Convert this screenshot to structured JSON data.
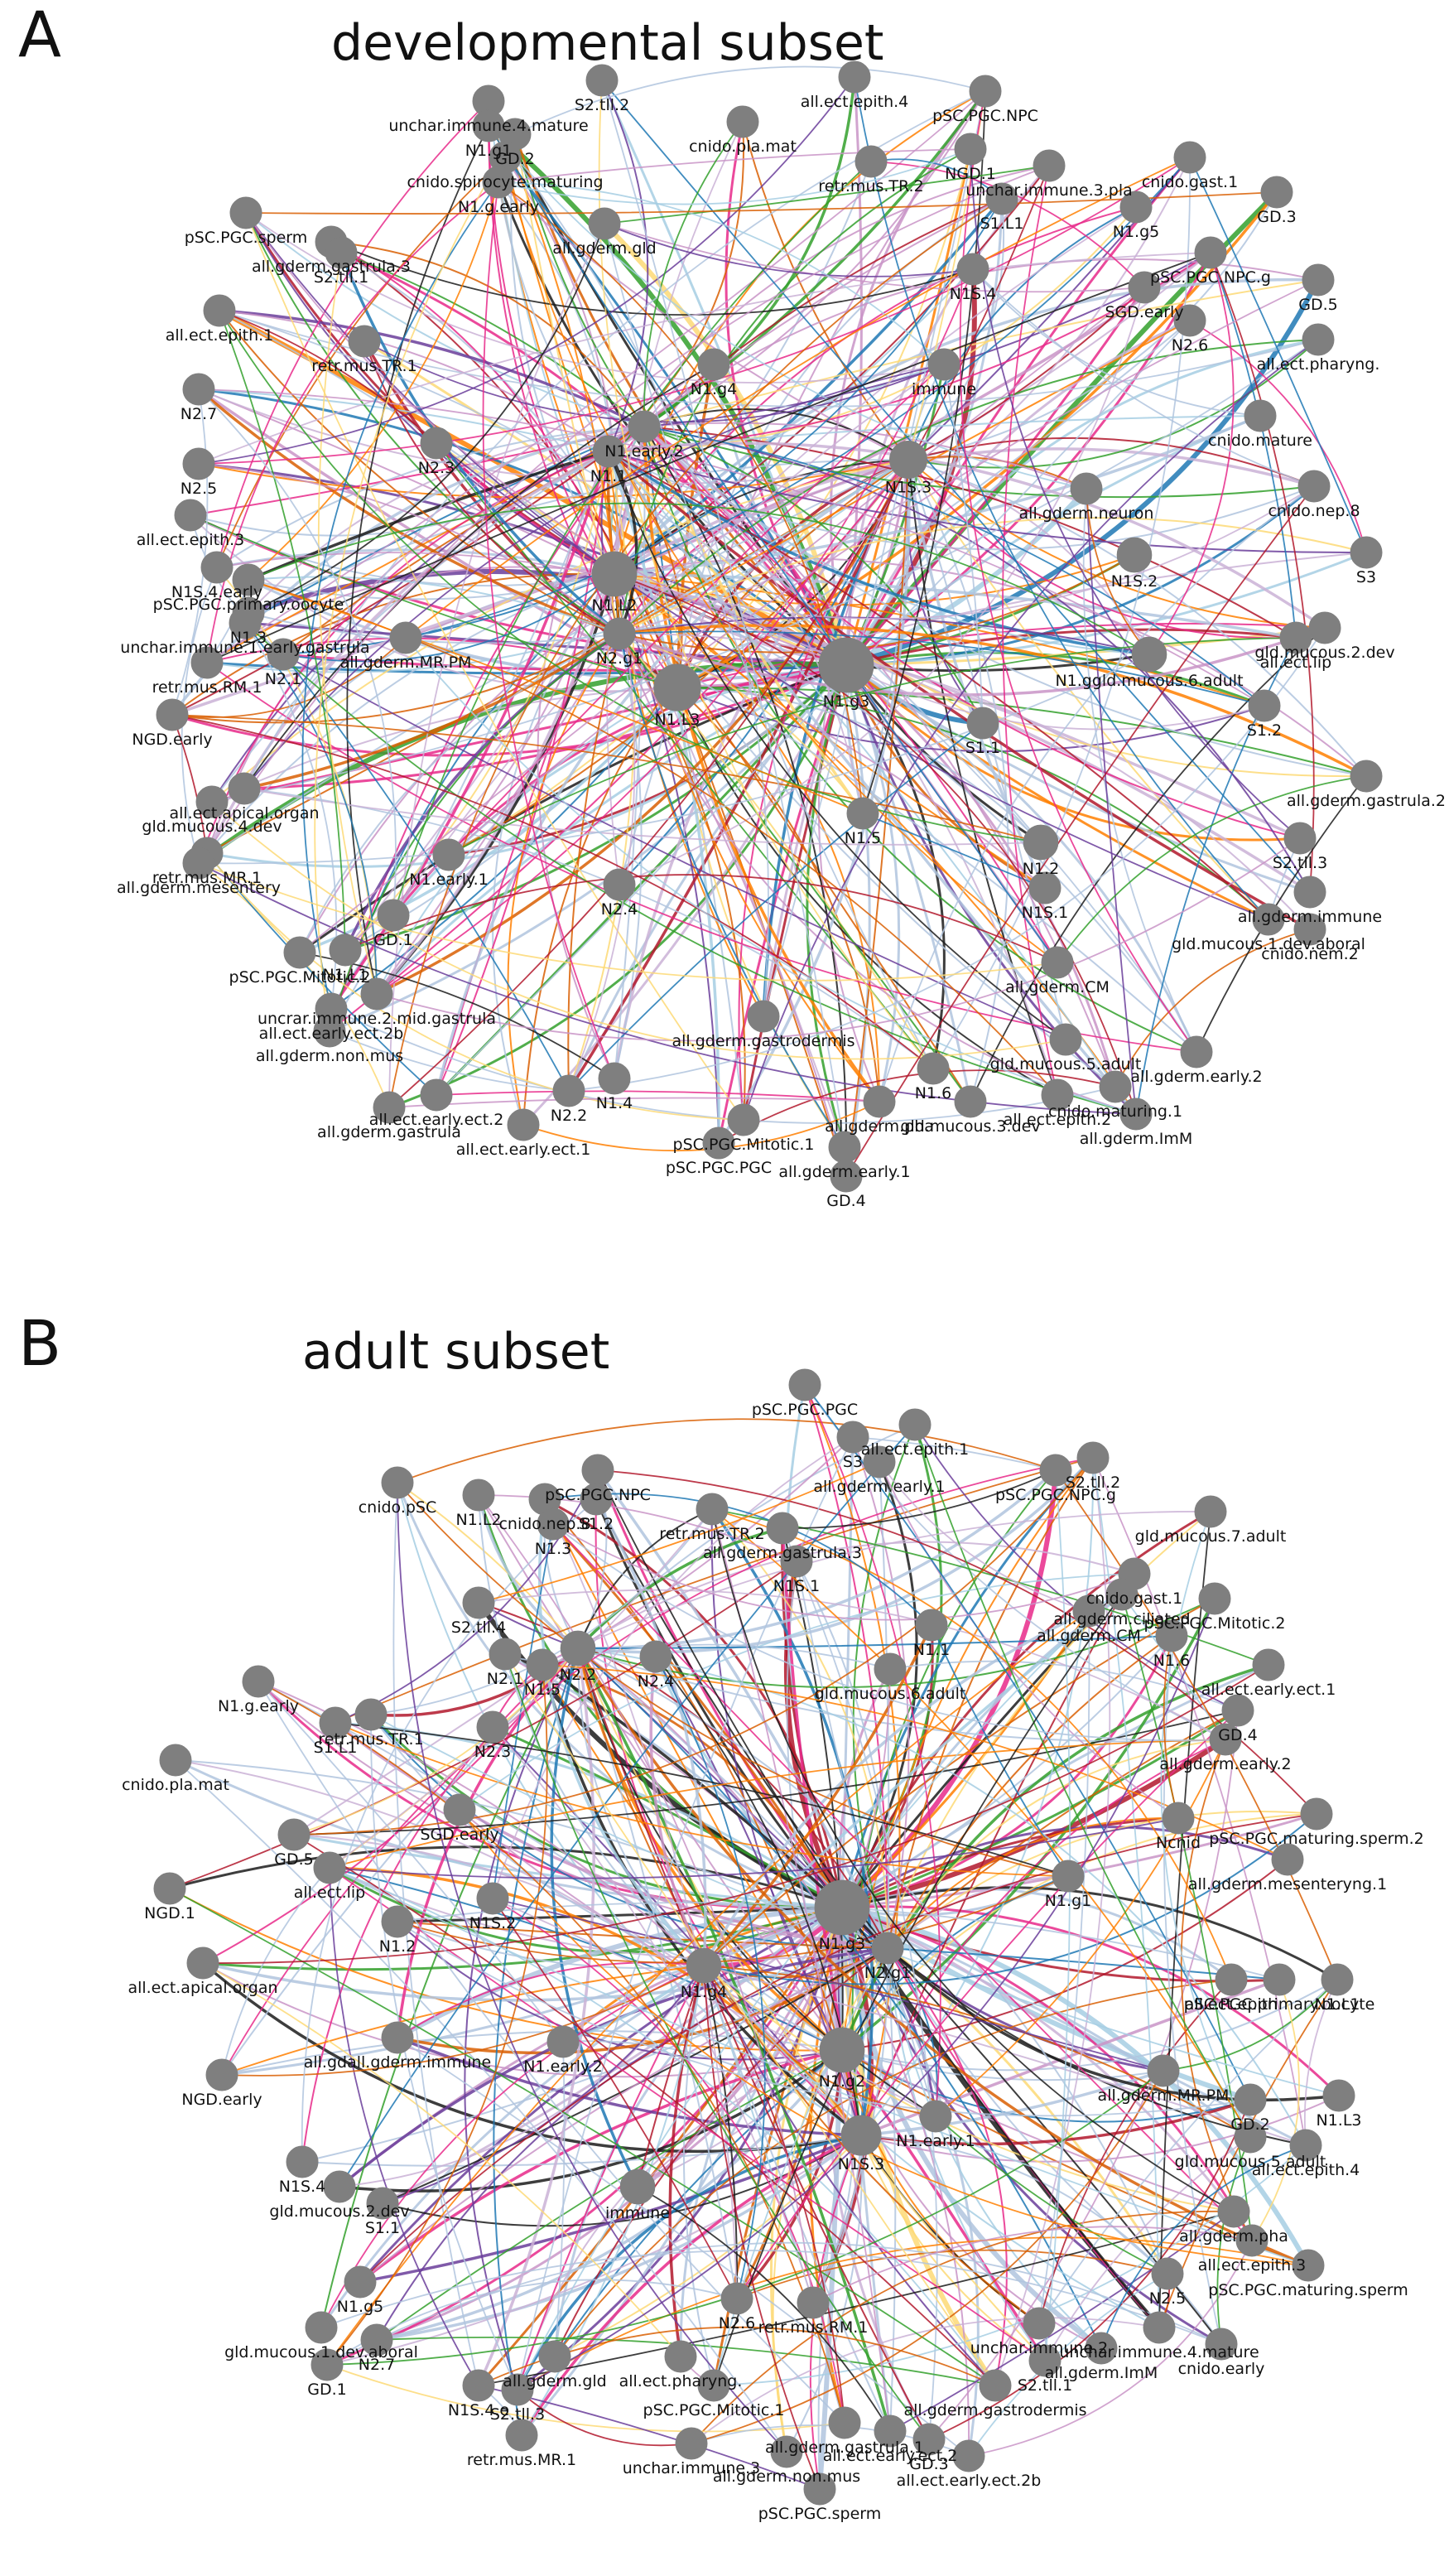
{
  "panels": [
    {
      "letter": "A",
      "title": "developmental subset",
      "hubs": [
        "N1.g3",
        "N1.L3",
        "N1.L2",
        "N1S.3",
        "N1.early.2",
        "N1.1",
        "N2.g1"
      ],
      "nodes": [
        {
          "id": "N1.g3",
          "size": 3
        },
        {
          "id": "N1.L3",
          "size": 2.2
        },
        {
          "id": "N1.L2",
          "size": 2
        },
        {
          "id": "N1S.3",
          "size": 1.4
        },
        {
          "id": "N2.g1",
          "size": 1
        },
        {
          "id": "N1.1",
          "size": 1
        },
        {
          "id": "N1.early.2",
          "size": 1
        },
        {
          "id": "N1S.2",
          "size": 1.2
        },
        {
          "id": "N1.ggld.mucous.6.adult",
          "size": 1.2
        },
        {
          "id": "N1S.4",
          "size": 1
        },
        {
          "id": "N1.g4",
          "size": 1
        },
        {
          "id": "N2.3",
          "size": 1
        },
        {
          "id": "immune",
          "size": 1
        },
        {
          "id": "all.gderm.neuron",
          "size": 1
        },
        {
          "id": "S1.1",
          "size": 1
        },
        {
          "id": "N1.5",
          "size": 1
        },
        {
          "id": "N1.2",
          "size": 1.2
        },
        {
          "id": "N2.4",
          "size": 1
        },
        {
          "id": "N1.early.1",
          "size": 1
        },
        {
          "id": "all.gderm.MR.PM",
          "size": 1
        },
        {
          "id": "all.gderm.gastrodermis",
          "size": 1
        },
        {
          "id": "N1.4",
          "size": 1
        },
        {
          "id": "N1.6",
          "size": 1
        },
        {
          "id": "N2.2",
          "size": 1
        },
        {
          "id": "N1S.1",
          "size": 1
        },
        {
          "id": "all.gderm.CM",
          "size": 1
        },
        {
          "id": "S1.2",
          "size": 1
        },
        {
          "id": "unchar.immune.4.mature",
          "size": 1
        },
        {
          "id": "N1.g1",
          "size": 1
        },
        {
          "id": "S2.tll.2",
          "size": 1
        },
        {
          "id": "GD.2",
          "size": 1
        },
        {
          "id": "cnido.spirocyte.maturing",
          "size": 1
        },
        {
          "id": "N1.g.early",
          "size": 1
        },
        {
          "id": "cnido.pla.mat",
          "size": 1
        },
        {
          "id": "all.ect.epith.4",
          "size": 1
        },
        {
          "id": "pSC.PGC.NPC",
          "size": 1
        },
        {
          "id": "NGD.1",
          "size": 1
        },
        {
          "id": "retr.mus.TR.2",
          "size": 1
        },
        {
          "id": "S1.L1",
          "size": 1
        },
        {
          "id": "unchar.immune.3.pla",
          "size": 1
        },
        {
          "id": "cnido.gast.1",
          "size": 1
        },
        {
          "id": "N1.g5",
          "size": 1
        },
        {
          "id": "GD.3",
          "size": 1
        },
        {
          "id": "pSC.PGC.sperm",
          "size": 1
        },
        {
          "id": "all.gderm.gastrula.3",
          "size": 1
        },
        {
          "id": "S2.tll.1",
          "size": 1
        },
        {
          "id": "all.gderm.gld",
          "size": 1
        },
        {
          "id": "pSC.PGC.NPC.g",
          "size": 1
        },
        {
          "id": "GD.5",
          "size": 1
        },
        {
          "id": "SGD.early",
          "size": 1
        },
        {
          "id": "N2.6",
          "size": 1
        },
        {
          "id": "all.ect.pharyng.",
          "size": 1
        },
        {
          "id": "all.ect.epith.1",
          "size": 1
        },
        {
          "id": "retr.mus.TR.1",
          "size": 1
        },
        {
          "id": "N2.7",
          "size": 1
        },
        {
          "id": "cnido.mature",
          "size": 1
        },
        {
          "id": "N2.5",
          "size": 1
        },
        {
          "id": "cnido.nep.8",
          "size": 1
        },
        {
          "id": "S3",
          "size": 1
        },
        {
          "id": "all.ect.epith.3",
          "size": 1
        },
        {
          "id": "N1S.4.early",
          "size": 1
        },
        {
          "id": "pSC.PGC.primary.oocyte",
          "size": 1
        },
        {
          "id": "N1.3",
          "size": 1
        },
        {
          "id": "unchar.immune.1.early.gastrula",
          "size": 1
        },
        {
          "id": "gld.mucous.2.dev",
          "size": 1
        },
        {
          "id": "all.ect.lip",
          "size": 1
        },
        {
          "id": "N2.1",
          "size": 1
        },
        {
          "id": "retr.mus.RM.1",
          "size": 1
        },
        {
          "id": "NGD.early",
          "size": 1
        },
        {
          "id": "all.ect.apical.organ",
          "size": 1
        },
        {
          "id": "gld.mucous.4.dev",
          "size": 1
        },
        {
          "id": "retr.mus.MR.1",
          "size": 1
        },
        {
          "id": "all.gderm.mesentery",
          "size": 1
        },
        {
          "id": "all.gderm.gastrula.2",
          "size": 1
        },
        {
          "id": "S2.tll.3",
          "size": 1
        },
        {
          "id": "all.gderm.immune",
          "size": 1
        },
        {
          "id": "gld.mucous.1.dev.aboral",
          "size": 1
        },
        {
          "id": "cnido.nem.2",
          "size": 1
        },
        {
          "id": "GD.1",
          "size": 1
        },
        {
          "id": "N1.L1",
          "size": 1
        },
        {
          "id": "pSC.PGC.Mitotic.2",
          "size": 1
        },
        {
          "id": "uncrar.immune.2.mid.gastrula",
          "size": 1
        },
        {
          "id": "all.ect.early.ect.2b",
          "size": 1
        },
        {
          "id": "all.gderm.non.mus",
          "size": 1
        },
        {
          "id": "gld.mucous.5.adult",
          "size": 1
        },
        {
          "id": "all.ect.early.ect.2",
          "size": 1
        },
        {
          "id": "all.gderm.gastrula",
          "size": 1
        },
        {
          "id": "all.ect.early.ect.1",
          "size": 1
        },
        {
          "id": "pSC.PGC.Mitotic.1",
          "size": 1
        },
        {
          "id": "pSC.PGC.PGC",
          "size": 1
        },
        {
          "id": "all.gderm.pha",
          "size": 1
        },
        {
          "id": "gld.mucous.3.dev",
          "size": 1
        },
        {
          "id": "all.gderm.early.1",
          "size": 1
        },
        {
          "id": "GD.4",
          "size": 1
        },
        {
          "id": "all.ect.epith.2",
          "size": 1
        },
        {
          "id": "cnido.maturing.1",
          "size": 1
        },
        {
          "id": "all.gderm.early.2",
          "size": 1
        },
        {
          "id": "all.gderm.ImM",
          "size": 1
        }
      ]
    },
    {
      "letter": "B",
      "title": "adult subset",
      "hubs": [
        "N1.g3",
        "N1.g2",
        "N1S.3",
        "N2.g1",
        "N2.2",
        "N1.g4"
      ],
      "nodes": [
        {
          "id": "N1.g3",
          "size": 3
        },
        {
          "id": "N1.g2",
          "size": 2
        },
        {
          "id": "N1S.3",
          "size": 1.6
        },
        {
          "id": "N2.g1",
          "size": 1
        },
        {
          "id": "N2.2",
          "size": 1.2
        },
        {
          "id": "N1.g4",
          "size": 1.2
        },
        {
          "id": "immune",
          "size": 1.2
        },
        {
          "id": "N1.early.2",
          "size": 1
        },
        {
          "id": "N1S.2",
          "size": 1
        },
        {
          "id": "N1.1",
          "size": 1
        },
        {
          "id": "N1S.1",
          "size": 1
        },
        {
          "id": "pSC.PGC.PGC",
          "size": 1
        },
        {
          "id": "all.ect.epith.1",
          "size": 1
        },
        {
          "id": "S3",
          "size": 1
        },
        {
          "id": "all.gderm.early.1",
          "size": 1
        },
        {
          "id": "S2.tll.2",
          "size": 1
        },
        {
          "id": "pSC.PGC.NPC.g",
          "size": 1
        },
        {
          "id": "pSC.PGC.NPC",
          "size": 1
        },
        {
          "id": "S1.2",
          "size": 1
        },
        {
          "id": "cnido.pSC",
          "size": 1
        },
        {
          "id": "N1.L2",
          "size": 1
        },
        {
          "id": "cnido.nep.8",
          "size": 1
        },
        {
          "id": "N1.3",
          "size": 1
        },
        {
          "id": "retr.mus.TR.2",
          "size": 1
        },
        {
          "id": "all.gderm.gastrula.3",
          "size": 1
        },
        {
          "id": "gld.mucous.7.adult",
          "size": 1
        },
        {
          "id": "cnido.gast.1",
          "size": 1
        },
        {
          "id": "all.gderm.ciliated",
          "size": 1
        },
        {
          "id": "all.gderm.CM",
          "size": 1
        },
        {
          "id": "pSC.PGC.Mitotic.2",
          "size": 1
        },
        {
          "id": "N1.6",
          "size": 1
        },
        {
          "id": "S2.tll.4",
          "size": 1
        },
        {
          "id": "N2.1",
          "size": 1
        },
        {
          "id": "N1.5",
          "size": 1
        },
        {
          "id": "N2.4",
          "size": 1
        },
        {
          "id": "gld.mucous.6.adult",
          "size": 1
        },
        {
          "id": "all.ect.early.ect.1",
          "size": 1
        },
        {
          "id": "GD.4",
          "size": 1
        },
        {
          "id": "all.gderm.early.2",
          "size": 1
        },
        {
          "id": "N1.g.early",
          "size": 1
        },
        {
          "id": "retr.mus.TR.1",
          "size": 1
        },
        {
          "id": "S1.L1",
          "size": 1
        },
        {
          "id": "N2.3",
          "size": 1
        },
        {
          "id": "cnido.pla.mat",
          "size": 1
        },
        {
          "id": "SGD.early",
          "size": 1
        },
        {
          "id": "Ncnid",
          "size": 1
        },
        {
          "id": "pSC.PGC.maturing.sperm.2",
          "size": 1
        },
        {
          "id": "all.gderm.mesenteryng.1",
          "size": 1
        },
        {
          "id": "GD.5",
          "size": 1
        },
        {
          "id": "all.ect.lip",
          "size": 1
        },
        {
          "id": "N1.g1",
          "size": 1
        },
        {
          "id": "NGD.1",
          "size": 1
        },
        {
          "id": "N1.2",
          "size": 1
        },
        {
          "id": "all.ect.apical.organ",
          "size": 1
        },
        {
          "id": "all.ect.epith",
          "size": 1
        },
        {
          "id": "pSC.PGC.primary.oocyte",
          "size": 1
        },
        {
          "id": "N1.L1",
          "size": 1
        },
        {
          "id": "all.gdall.gderm.immune",
          "size": 1
        },
        {
          "id": "NGD.early",
          "size": 1
        },
        {
          "id": "all.gderm.MR.PM",
          "size": 1
        },
        {
          "id": "GD.2",
          "size": 1
        },
        {
          "id": "N1.L3",
          "size": 1
        },
        {
          "id": "N1.early.1",
          "size": 1
        },
        {
          "id": "gld.mucous.5.adult",
          "size": 1
        },
        {
          "id": "all.ect.epith.4",
          "size": 1
        },
        {
          "id": "N1S.4",
          "size": 1
        },
        {
          "id": "gld.mucous.2.dev",
          "size": 1
        },
        {
          "id": "S1.1",
          "size": 1
        },
        {
          "id": "all.gderm.pha",
          "size": 1
        },
        {
          "id": "all.ect.epith.3",
          "size": 1
        },
        {
          "id": "pSC.PGC.maturing.sperm",
          "size": 1
        },
        {
          "id": "N2.5",
          "size": 1
        },
        {
          "id": "N1.g5",
          "size": 1
        },
        {
          "id": "gld.mucous.1.dev.aboral",
          "size": 1
        },
        {
          "id": "N2.7",
          "size": 1
        },
        {
          "id": "GD.1",
          "size": 1
        },
        {
          "id": "N2.6",
          "size": 1
        },
        {
          "id": "retr.mus.RM.1",
          "size": 1
        },
        {
          "id": "unchar.immune.2",
          "size": 1
        },
        {
          "id": "unchar.immune.4.mature",
          "size": 1
        },
        {
          "id": "cnido.early",
          "size": 1
        },
        {
          "id": "all.gderm.ImM",
          "size": 1
        },
        {
          "id": "S2.tll.1",
          "size": 1
        },
        {
          "id": "all.ect.pharyng.",
          "size": 1
        },
        {
          "id": "all.gderm.gld",
          "size": 1
        },
        {
          "id": "pSC.PGC.Mitotic.1",
          "size": 1
        },
        {
          "id": "all.gderm.gastrodermis",
          "size": 1
        },
        {
          "id": "N1S.4.e",
          "size": 1
        },
        {
          "id": "S2.tll.3",
          "size": 1
        },
        {
          "id": "retr.mus.MR.1",
          "size": 1
        },
        {
          "id": "unchar.immune.3",
          "size": 1
        },
        {
          "id": "all.gderm.gastrula.1",
          "size": 1
        },
        {
          "id": "all.gderm.non.mus",
          "size": 1
        },
        {
          "id": "all.ect.early.ect.2",
          "size": 1
        },
        {
          "id": "GD.3",
          "size": 1
        },
        {
          "id": "all.ect.early.ect.2b",
          "size": 1
        },
        {
          "id": "pSC.PGC.sperm",
          "size": 1
        }
      ]
    }
  ],
  "colors": {
    "node": "#7f7f7f",
    "edge_palette": [
      "#b0c4de",
      "#b0c4de",
      "#b0c4de",
      "#c994c7",
      "#e7298a",
      "#d95f02",
      "#ff7f00",
      "#fdd976",
      "#33a02c",
      "#a6cee3",
      "#1f78b4",
      "#6a3d9a",
      "#b2182b",
      "#1b1b1b",
      "#cab2d6"
    ]
  }
}
